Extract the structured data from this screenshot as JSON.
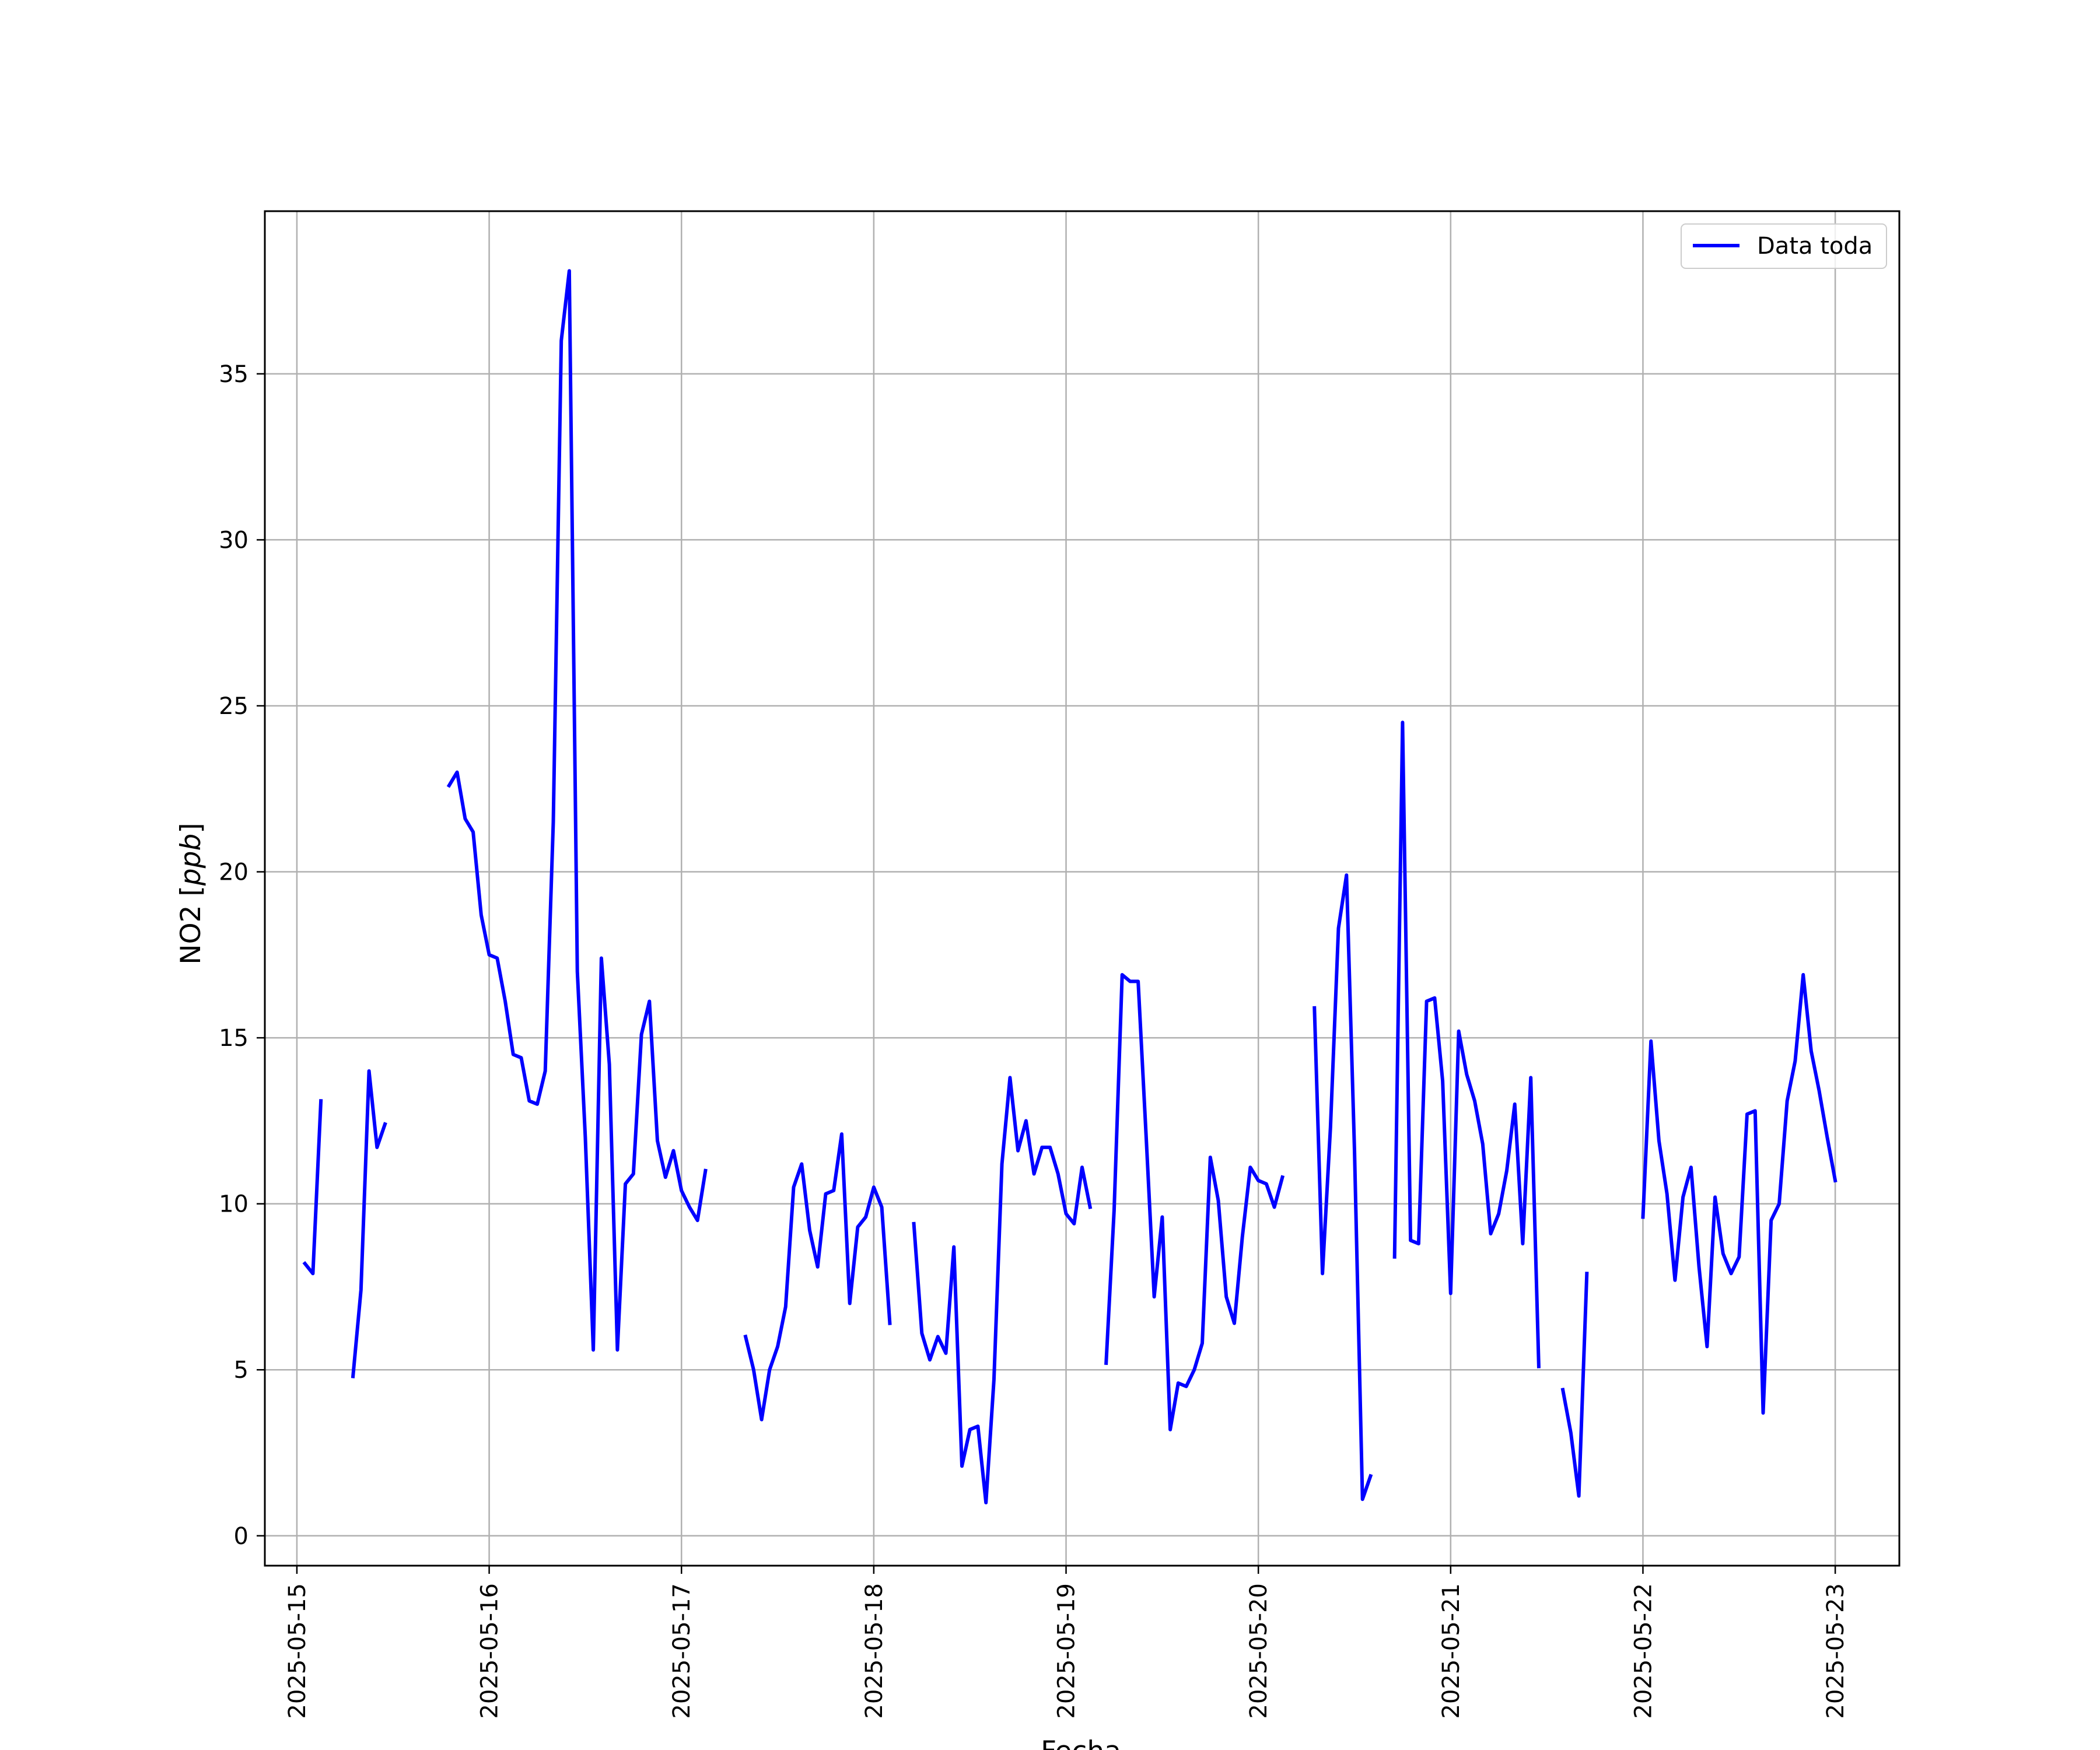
{
  "chart_data": {
    "type": "line",
    "title": "",
    "xlabel": "Fecha",
    "ylabel": "NO2 [ppb]",
    "ylabel_parts": [
      "NO2 [",
      "ppb",
      "]"
    ],
    "xlim": [
      "2025-05-14 20:00",
      "2025-05-23 08:00"
    ],
    "ylim": [
      -0.9,
      39.9
    ],
    "x_ticks": [
      "2025-05-15",
      "2025-05-16",
      "2025-05-17",
      "2025-05-18",
      "2025-05-19",
      "2025-05-20",
      "2025-05-21",
      "2025-05-22",
      "2025-05-23"
    ],
    "y_ticks": [
      0,
      5,
      10,
      15,
      20,
      25,
      30,
      35
    ],
    "grid": true,
    "legend": {
      "position": "top-right",
      "entries": [
        "Data toda"
      ]
    },
    "colors": {
      "series": "#0000ff",
      "grid": "#b0b0b0",
      "axes": "#000000"
    },
    "series": [
      {
        "name": "Data toda",
        "points": [
          [
            "2025-05-15 01:00",
            8.2
          ],
          [
            "2025-05-15 02:00",
            7.9
          ],
          [
            "2025-05-15 03:00",
            13.1
          ],
          [
            "2025-05-15 04:00",
            null
          ],
          [
            "2025-05-15 05:00",
            null
          ],
          [
            "2025-05-15 06:00",
            null
          ],
          [
            "2025-05-15 07:00",
            4.8
          ],
          [
            "2025-05-15 08:00",
            7.4
          ],
          [
            "2025-05-15 09:00",
            14.0
          ],
          [
            "2025-05-15 10:00",
            11.7
          ],
          [
            "2025-05-15 11:00",
            12.4
          ],
          [
            "2025-05-15 12:00",
            null
          ],
          [
            "2025-05-15 19:00",
            22.6
          ],
          [
            "2025-05-15 20:00",
            23.0
          ],
          [
            "2025-05-15 21:00",
            21.6
          ],
          [
            "2025-05-15 22:00",
            21.2
          ],
          [
            "2025-05-15 23:00",
            18.7
          ],
          [
            "2025-05-16 00:00",
            17.5
          ],
          [
            "2025-05-16 01:00",
            17.4
          ],
          [
            "2025-05-16 02:00",
            16.1
          ],
          [
            "2025-05-16 03:00",
            14.5
          ],
          [
            "2025-05-16 04:00",
            14.4
          ],
          [
            "2025-05-16 05:00",
            13.1
          ],
          [
            "2025-05-16 06:00",
            13.0
          ],
          [
            "2025-05-16 07:00",
            14.0
          ],
          [
            "2025-05-16 08:00",
            21.5
          ],
          [
            "2025-05-16 09:00",
            36.0
          ],
          [
            "2025-05-16 10:00",
            38.1
          ],
          [
            "2025-05-16 11:00",
            17.0
          ],
          [
            "2025-05-16 12:00",
            12.0
          ],
          [
            "2025-05-16 13:00",
            5.6
          ],
          [
            "2025-05-16 14:00",
            17.4
          ],
          [
            "2025-05-16 15:00",
            14.2
          ],
          [
            "2025-05-16 16:00",
            5.6
          ],
          [
            "2025-05-16 17:00",
            10.6
          ],
          [
            "2025-05-16 18:00",
            10.9
          ],
          [
            "2025-05-16 19:00",
            15.1
          ],
          [
            "2025-05-16 20:00",
            16.1
          ],
          [
            "2025-05-16 21:00",
            11.9
          ],
          [
            "2025-05-16 22:00",
            10.8
          ],
          [
            "2025-05-16 23:00",
            11.6
          ],
          [
            "2025-05-17 00:00",
            10.4
          ],
          [
            "2025-05-17 01:00",
            9.9
          ],
          [
            "2025-05-17 02:00",
            9.5
          ],
          [
            "2025-05-17 03:00",
            11.0
          ],
          [
            "2025-05-17 04:00",
            null
          ],
          [
            "2025-05-17 08:00",
            6.0
          ],
          [
            "2025-05-17 09:00",
            5.0
          ],
          [
            "2025-05-17 10:00",
            3.5
          ],
          [
            "2025-05-17 11:00",
            5.0
          ],
          [
            "2025-05-17 12:00",
            5.7
          ],
          [
            "2025-05-17 13:00",
            6.9
          ],
          [
            "2025-05-17 14:00",
            10.5
          ],
          [
            "2025-05-17 15:00",
            11.2
          ],
          [
            "2025-05-17 16:00",
            9.2
          ],
          [
            "2025-05-17 17:00",
            8.1
          ],
          [
            "2025-05-17 18:00",
            10.3
          ],
          [
            "2025-05-17 19:00",
            10.4
          ],
          [
            "2025-05-17 20:00",
            12.1
          ],
          [
            "2025-05-17 21:00",
            7.0
          ],
          [
            "2025-05-17 22:00",
            9.3
          ],
          [
            "2025-05-17 23:00",
            9.6
          ],
          [
            "2025-05-18 00:00",
            10.5
          ],
          [
            "2025-05-18 01:00",
            9.9
          ],
          [
            "2025-05-18 02:00",
            6.4
          ],
          [
            "2025-05-18 03:00",
            null
          ],
          [
            "2025-05-18 05:00",
            9.4
          ],
          [
            "2025-05-18 06:00",
            6.1
          ],
          [
            "2025-05-18 07:00",
            5.3
          ],
          [
            "2025-05-18 08:00",
            6.0
          ],
          [
            "2025-05-18 09:00",
            5.5
          ],
          [
            "2025-05-18 10:00",
            8.7
          ],
          [
            "2025-05-18 11:00",
            2.1
          ],
          [
            "2025-05-18 12:00",
            3.2
          ],
          [
            "2025-05-18 13:00",
            3.3
          ],
          [
            "2025-05-18 14:00",
            1.0
          ],
          [
            "2025-05-18 15:00",
            4.7
          ],
          [
            "2025-05-18 16:00",
            11.2
          ],
          [
            "2025-05-18 17:00",
            13.8
          ],
          [
            "2025-05-18 18:00",
            11.6
          ],
          [
            "2025-05-18 19:00",
            12.5
          ],
          [
            "2025-05-18 20:00",
            10.9
          ],
          [
            "2025-05-18 21:00",
            11.7
          ],
          [
            "2025-05-18 22:00",
            11.7
          ],
          [
            "2025-05-18 23:00",
            10.9
          ],
          [
            "2025-05-19 00:00",
            9.7
          ],
          [
            "2025-05-19 01:00",
            9.4
          ],
          [
            "2025-05-19 02:00",
            11.1
          ],
          [
            "2025-05-19 03:00",
            9.9
          ],
          [
            "2025-05-19 04:00",
            null
          ],
          [
            "2025-05-19 05:00",
            5.2
          ],
          [
            "2025-05-19 06:00",
            9.8
          ],
          [
            "2025-05-19 07:00",
            16.9
          ],
          [
            "2025-05-19 08:00",
            16.7
          ],
          [
            "2025-05-19 09:00",
            16.7
          ],
          [
            "2025-05-19 10:00",
            12.0
          ],
          [
            "2025-05-19 11:00",
            7.2
          ],
          [
            "2025-05-19 12:00",
            9.6
          ],
          [
            "2025-05-19 13:00",
            3.2
          ],
          [
            "2025-05-19 14:00",
            4.6
          ],
          [
            "2025-05-19 15:00",
            4.5
          ],
          [
            "2025-05-19 16:00",
            5.0
          ],
          [
            "2025-05-19 17:00",
            5.8
          ],
          [
            "2025-05-19 18:00",
            11.4
          ],
          [
            "2025-05-19 19:00",
            10.1
          ],
          [
            "2025-05-19 20:00",
            7.2
          ],
          [
            "2025-05-19 21:00",
            6.4
          ],
          [
            "2025-05-19 22:00",
            9.0
          ],
          [
            "2025-05-19 23:00",
            11.1
          ],
          [
            "2025-05-20 00:00",
            10.7
          ],
          [
            "2025-05-20 01:00",
            10.6
          ],
          [
            "2025-05-20 02:00",
            9.9
          ],
          [
            "2025-05-20 03:00",
            10.8
          ],
          [
            "2025-05-20 04:00",
            null
          ],
          [
            "2025-05-20 07:00",
            15.9
          ],
          [
            "2025-05-20 08:00",
            7.9
          ],
          [
            "2025-05-20 09:00",
            12.3
          ],
          [
            "2025-05-20 10:00",
            18.3
          ],
          [
            "2025-05-20 11:00",
            19.9
          ],
          [
            "2025-05-20 12:00",
            11.6
          ],
          [
            "2025-05-20 13:00",
            1.1
          ],
          [
            "2025-05-20 14:00",
            1.8
          ],
          [
            "2025-05-20 15:00",
            null
          ],
          [
            "2025-05-20 17:00",
            8.4
          ],
          [
            "2025-05-20 18:00",
            24.5
          ],
          [
            "2025-05-20 19:00",
            8.9
          ],
          [
            "2025-05-20 20:00",
            8.8
          ],
          [
            "2025-05-20 21:00",
            16.1
          ],
          [
            "2025-05-20 22:00",
            16.2
          ],
          [
            "2025-05-20 23:00",
            13.7
          ],
          [
            "2025-05-21 00:00",
            7.3
          ],
          [
            "2025-05-21 01:00",
            15.2
          ],
          [
            "2025-05-21 02:00",
            13.9
          ],
          [
            "2025-05-21 03:00",
            13.1
          ],
          [
            "2025-05-21 04:00",
            11.8
          ],
          [
            "2025-05-21 05:00",
            9.1
          ],
          [
            "2025-05-21 06:00",
            9.7
          ],
          [
            "2025-05-21 07:00",
            11.0
          ],
          [
            "2025-05-21 08:00",
            13.0
          ],
          [
            "2025-05-21 09:00",
            8.8
          ],
          [
            "2025-05-21 10:00",
            13.8
          ],
          [
            "2025-05-21 11:00",
            5.1
          ],
          [
            "2025-05-21 12:00",
            null
          ],
          [
            "2025-05-21 14:00",
            4.4
          ],
          [
            "2025-05-21 15:00",
            3.1
          ],
          [
            "2025-05-21 16:00",
            1.2
          ],
          [
            "2025-05-21 17:00",
            7.9
          ],
          [
            "2025-05-21 18:00",
            null
          ],
          [
            "2025-05-22 00:00",
            9.6
          ],
          [
            "2025-05-22 01:00",
            14.9
          ],
          [
            "2025-05-22 02:00",
            11.9
          ],
          [
            "2025-05-22 03:00",
            10.3
          ],
          [
            "2025-05-22 04:00",
            7.7
          ],
          [
            "2025-05-22 05:00",
            10.2
          ],
          [
            "2025-05-22 06:00",
            11.1
          ],
          [
            "2025-05-22 07:00",
            8.1
          ],
          [
            "2025-05-22 08:00",
            5.7
          ],
          [
            "2025-05-22 09:00",
            10.2
          ],
          [
            "2025-05-22 10:00",
            8.5
          ],
          [
            "2025-05-22 11:00",
            7.9
          ],
          [
            "2025-05-22 12:00",
            8.4
          ],
          [
            "2025-05-22 13:00",
            12.7
          ],
          [
            "2025-05-22 14:00",
            12.8
          ],
          [
            "2025-05-22 15:00",
            3.7
          ],
          [
            "2025-05-22 16:00",
            9.5
          ],
          [
            "2025-05-22 17:00",
            10.0
          ],
          [
            "2025-05-22 18:00",
            13.1
          ],
          [
            "2025-05-22 19:00",
            14.3
          ],
          [
            "2025-05-22 20:00",
            16.9
          ],
          [
            "2025-05-22 21:00",
            14.6
          ],
          [
            "2025-05-22 22:00",
            13.4
          ],
          [
            "2025-05-22 23:00",
            12.0
          ],
          [
            "2025-05-23 00:00",
            10.7
          ]
        ]
      }
    ]
  }
}
